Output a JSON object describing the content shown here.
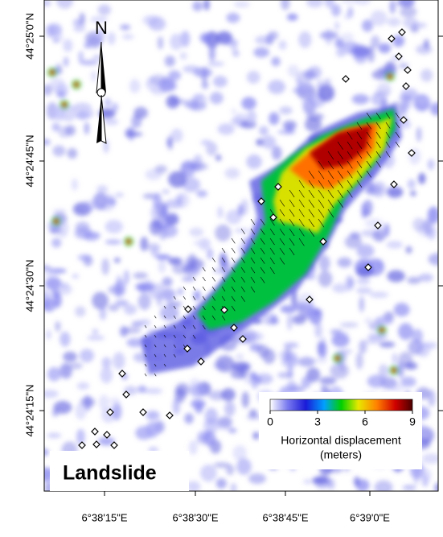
{
  "map": {
    "north": "N",
    "lat_labels": [
      "44°25'0\"N",
      "44°24'45\"N",
      "44°24'30\"N",
      "44°24'15\"N"
    ],
    "lon_labels": [
      "6°38'15\"E",
      "6°38'30\"E",
      "6°38'45\"E",
      "6°39'0\"E"
    ],
    "colorbar": {
      "range": [
        0,
        9
      ],
      "ticks": [
        0,
        3,
        6,
        9
      ],
      "title": "Horizontal displacement",
      "unit": "(meters)"
    },
    "label": "Landslide"
  }
}
